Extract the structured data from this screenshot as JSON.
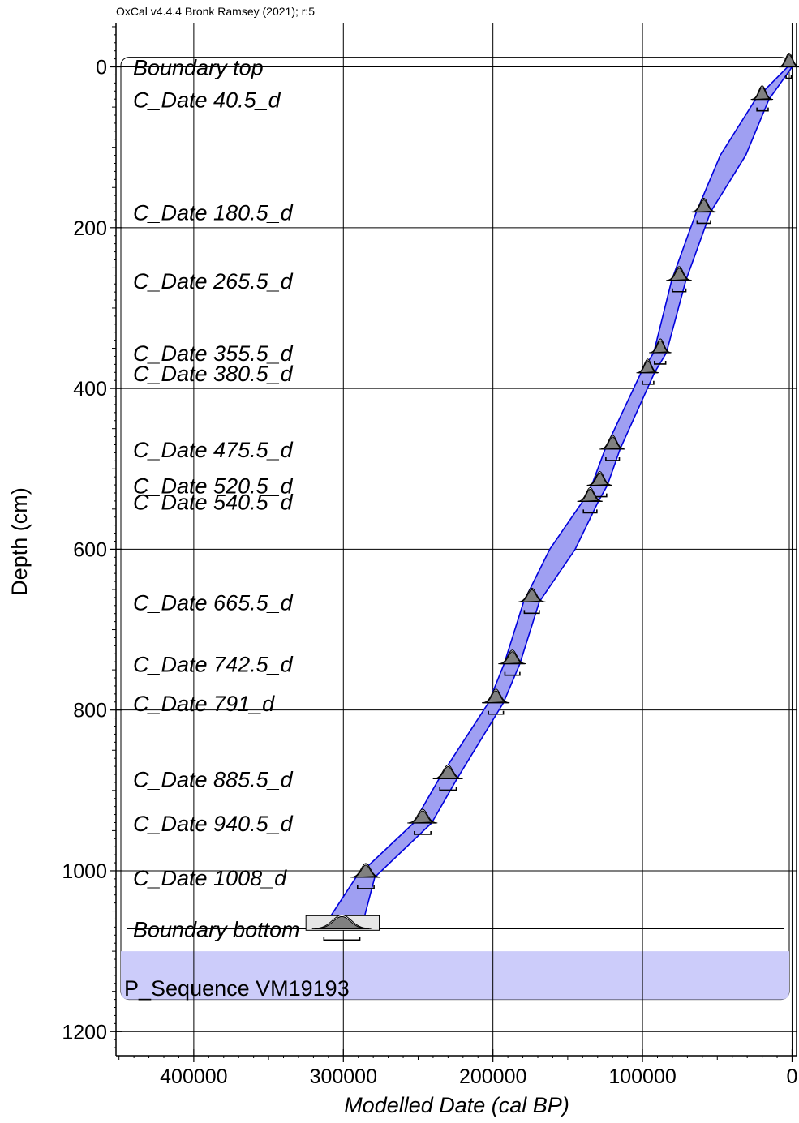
{
  "credit": "OxCal v4.4.4 Bronk Ramsey (2021); r:5",
  "chart_data": {
    "type": "line",
    "xlabel": "Modelled Date (cal BP)",
    "ylabel": "Depth (cm)",
    "xlim": [
      452000,
      -3000
    ],
    "ylim": [
      1230,
      -55
    ],
    "x_axis_reversed": true,
    "y_axis_reversed": true,
    "x_ticks": [
      400000,
      300000,
      200000,
      100000,
      0
    ],
    "x_tick_labels": [
      "400000",
      "300000",
      "200000",
      "100000",
      "0"
    ],
    "y_ticks": [
      0,
      200,
      400,
      600,
      800,
      1000,
      1200
    ],
    "y_tick_labels": [
      "0",
      "200",
      "400",
      "600",
      "800",
      "1000",
      "1200"
    ],
    "grid": true,
    "sequence_label": "P_Sequence VM19193",
    "labels": [
      {
        "text": "Boundary top",
        "depth": 0
      },
      {
        "text": "C_Date 40.5_d",
        "depth": 40.5
      },
      {
        "text": "C_Date 180.5_d",
        "depth": 180.5
      },
      {
        "text": "C_Date 265.5_d",
        "depth": 265.5
      },
      {
        "text": "C_Date 355.5_d",
        "depth": 355.5
      },
      {
        "text": "C_Date 380.5_d",
        "depth": 380.5
      },
      {
        "text": "C_Date 475.5_d",
        "depth": 475.5
      },
      {
        "text": "C_Date 520.5_d",
        "depth": 520.5
      },
      {
        "text": "C_Date 540.5_d",
        "depth": 540.5
      },
      {
        "text": "C_Date 665.5_d",
        "depth": 665.5
      },
      {
        "text": "C_Date 742.5_d",
        "depth": 742.5
      },
      {
        "text": "C_Date 791_d",
        "depth": 791
      },
      {
        "text": "C_Date 885.5_d",
        "depth": 885.5
      },
      {
        "text": "C_Date 940.5_d",
        "depth": 940.5
      },
      {
        "text": "C_Date 1008_d",
        "depth": 1008
      },
      {
        "text": "Boundary bottom",
        "depth": 1072
      }
    ],
    "dates": [
      {
        "depth": 0,
        "median": 2000,
        "range": [
          500,
          4000
        ]
      },
      {
        "depth": 40.5,
        "median": 20000,
        "range": [
          16000,
          23500
        ]
      },
      {
        "depth": 180.5,
        "median": 59000,
        "range": [
          54500,
          63500
        ]
      },
      {
        "depth": 265.5,
        "median": 75500,
        "range": [
          71000,
          80000
        ]
      },
      {
        "depth": 355.5,
        "median": 88000,
        "range": [
          84500,
          92000
        ]
      },
      {
        "depth": 380.5,
        "median": 96500,
        "range": [
          92500,
          100000
        ]
      },
      {
        "depth": 475.5,
        "median": 120000,
        "range": [
          115500,
          124500
        ]
      },
      {
        "depth": 520.5,
        "median": 128500,
        "range": [
          124000,
          133000
        ]
      },
      {
        "depth": 540.5,
        "median": 135000,
        "range": [
          130500,
          139500
        ]
      },
      {
        "depth": 665.5,
        "median": 174000,
        "range": [
          169000,
          179000
        ]
      },
      {
        "depth": 742.5,
        "median": 187000,
        "range": [
          182000,
          192000
        ]
      },
      {
        "depth": 791,
        "median": 198000,
        "range": [
          193000,
          203000
        ]
      },
      {
        "depth": 885.5,
        "median": 230000,
        "range": [
          224500,
          235500
        ]
      },
      {
        "depth": 940.5,
        "median": 247000,
        "range": [
          241500,
          252500
        ]
      },
      {
        "depth": 1008,
        "median": 285000,
        "range": [
          279500,
          290500
        ]
      },
      {
        "depth": 1072,
        "median": 301000,
        "range": [
          289000,
          313000
        ]
      }
    ],
    "envelope": [
      {
        "depth": 0,
        "young": 0,
        "old": 3000
      },
      {
        "depth": 40.5,
        "young": 15500,
        "old": 24500
      },
      {
        "depth": 110,
        "young": 31000,
        "old": 48000
      },
      {
        "depth": 180.5,
        "young": 54500,
        "old": 64000
      },
      {
        "depth": 265.5,
        "young": 71000,
        "old": 80500
      },
      {
        "depth": 355.5,
        "young": 84000,
        "old": 92500
      },
      {
        "depth": 380.5,
        "young": 92000,
        "old": 101000
      },
      {
        "depth": 475.5,
        "young": 115000,
        "old": 125000
      },
      {
        "depth": 520.5,
        "young": 123500,
        "old": 134000
      },
      {
        "depth": 540.5,
        "young": 129500,
        "old": 140000
      },
      {
        "depth": 600,
        "young": 145000,
        "old": 162000
      },
      {
        "depth": 665.5,
        "young": 169000,
        "old": 179500
      },
      {
        "depth": 742.5,
        "young": 182000,
        "old": 192500
      },
      {
        "depth": 791,
        "young": 193000,
        "old": 203000
      },
      {
        "depth": 885.5,
        "young": 224000,
        "old": 236000
      },
      {
        "depth": 940.5,
        "young": 241000,
        "old": 253000
      },
      {
        "depth": 1008,
        "young": 279000,
        "old": 291500
      },
      {
        "depth": 1072,
        "young": 288000,
        "old": 314000
      }
    ]
  },
  "colors": {
    "envelope_fill": "#9f9ff2",
    "envelope_stroke": "#0000dd",
    "sequence_fill": "#ccccfa",
    "grid": "#000000",
    "distribution": "#808080",
    "boundary_box": "#e6e6e6"
  }
}
